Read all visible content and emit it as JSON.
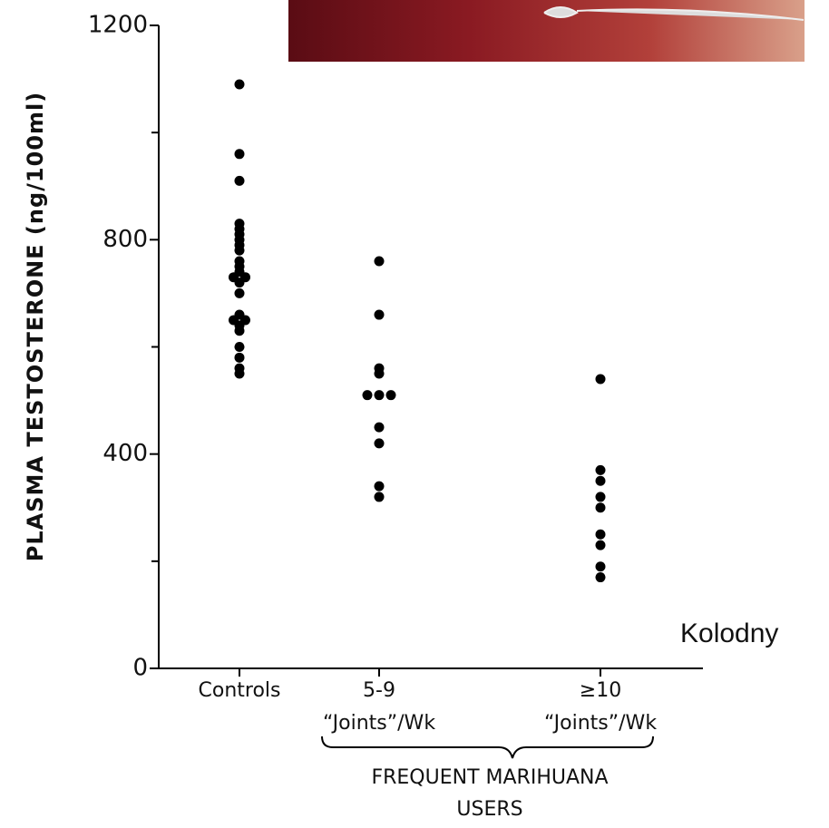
{
  "chart_data": {
    "type": "strip",
    "y_label": "PLASMA TESTOSTERONE (ng/100ml)",
    "categories": [
      [
        "Controls"
      ],
      [
        "5-9",
        "“Joints”/Wk"
      ],
      [
        "≥10",
        "“Joints”/Wk"
      ]
    ],
    "group_label": [
      "FREQUENT MARIHUANA",
      "USERS"
    ],
    "annotation": "Kolodny",
    "values": [
      [
        1090,
        960,
        910,
        830,
        820,
        810,
        800,
        790,
        780,
        760,
        750,
        740,
        730,
        730,
        720,
        700,
        660,
        650,
        650,
        640,
        630,
        600,
        580,
        560,
        550
      ],
      [
        760,
        660,
        560,
        550,
        510,
        510,
        510,
        450,
        420,
        340,
        320
      ],
      [
        540,
        370,
        350,
        320,
        300,
        250,
        230,
        190,
        170
      ]
    ],
    "color": "#000000",
    "ylim": [
      0,
      1200
    ],
    "yticks": [
      0,
      400,
      800,
      1200
    ],
    "yminor_ticks": [
      200,
      600,
      1000
    ]
  }
}
